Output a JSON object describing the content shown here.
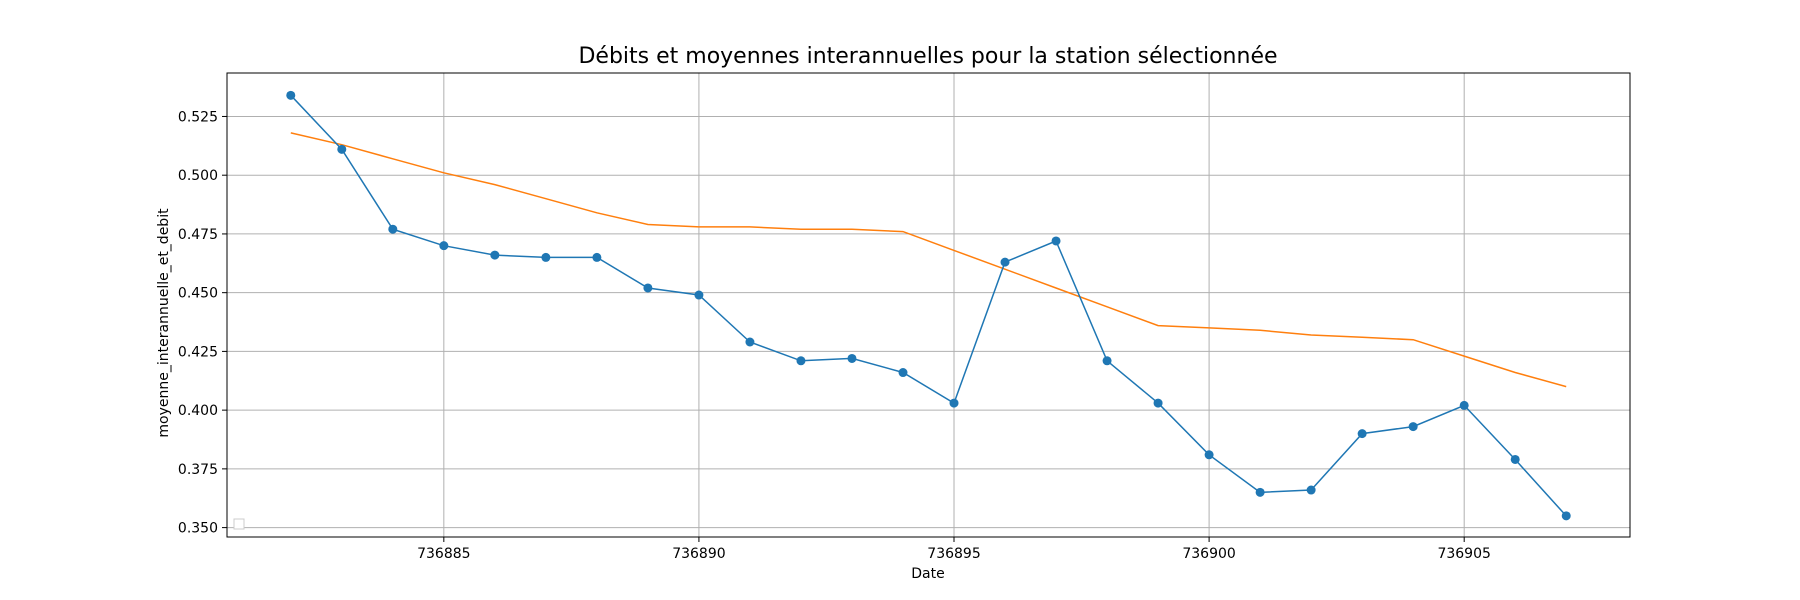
{
  "chart_data": {
    "type": "line",
    "title": "Débits et moyennes interannuelles pour la station sélectionnée",
    "xlabel": "Date",
    "ylabel": "moyenne_interannuelle_et_debit",
    "xlim": [
      736880.75,
      736908.25
    ],
    "ylim": [
      0.346,
      0.5435
    ],
    "x_ticks": [
      736885,
      736890,
      736895,
      736900,
      736905
    ],
    "x_tick_labels": [
      "736885",
      "736890",
      "736895",
      "736900",
      "736905"
    ],
    "y_ticks": [
      0.35,
      0.375,
      0.4,
      0.425,
      0.45,
      0.475,
      0.5,
      0.525
    ],
    "y_tick_labels": [
      "0.350",
      "0.375",
      "0.400",
      "0.425",
      "0.450",
      "0.475",
      "0.500",
      "0.525"
    ],
    "grid": true,
    "legend": "lower-left (empty)",
    "x": [
      736882,
      736883,
      736884,
      736885,
      736886,
      736887,
      736888,
      736889,
      736890,
      736891,
      736892,
      736893,
      736894,
      736895,
      736896,
      736897,
      736898,
      736899,
      736900,
      736901,
      736902,
      736903,
      736904,
      736905,
      736906,
      736907
    ],
    "series": [
      {
        "color": "#1f77b4",
        "marker": "circle",
        "values": [
          0.534,
          0.511,
          0.477,
          0.47,
          0.466,
          0.465,
          0.465,
          0.452,
          0.449,
          0.429,
          0.421,
          0.422,
          0.416,
          0.403,
          0.463,
          0.472,
          0.421,
          0.403,
          0.381,
          0.365,
          0.366,
          0.39,
          0.393,
          0.402,
          0.379,
          0.355
        ]
      },
      {
        "color": "#ff7f0e",
        "marker": "none",
        "values": [
          0.518,
          0.513,
          0.507,
          0.501,
          0.496,
          0.49,
          0.484,
          0.479,
          0.478,
          0.478,
          0.477,
          0.477,
          0.476,
          0.468,
          0.46,
          0.452,
          0.444,
          0.436,
          0.435,
          0.434,
          0.432,
          0.431,
          0.43,
          0.423,
          0.416,
          0.41
        ]
      }
    ]
  }
}
